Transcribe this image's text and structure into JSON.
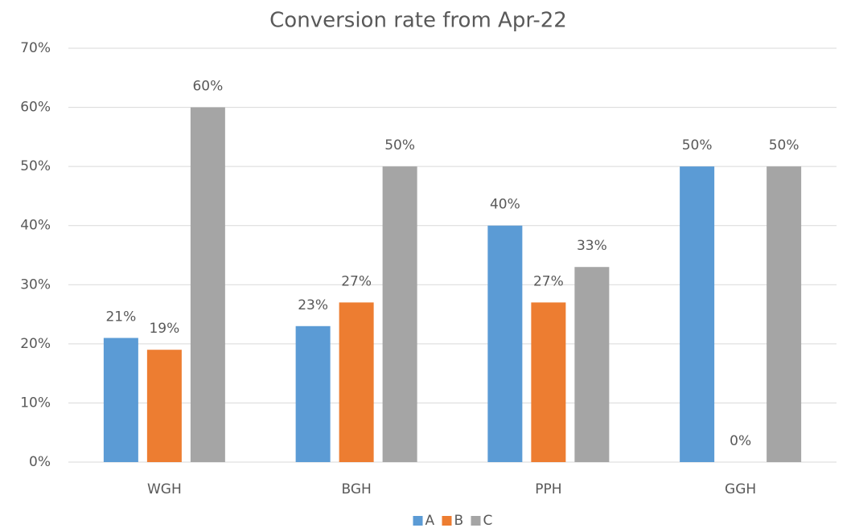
{
  "chart_data": {
    "type": "bar",
    "title": "Conversion rate from Apr-22",
    "categories": [
      "WGH",
      "BGH",
      "PPH",
      "GGH"
    ],
    "series": [
      {
        "name": "A",
        "color": "#5b9bd5",
        "values": [
          21,
          23,
          40,
          50
        ],
        "value_labels": [
          "21%",
          "23%",
          "40%",
          "50%"
        ]
      },
      {
        "name": "B",
        "color": "#ed7d31",
        "values": [
          19,
          27,
          27,
          0
        ],
        "value_labels": [
          "19%",
          "27%",
          "27%",
          "0%"
        ]
      },
      {
        "name": "C",
        "color": "#a5a5a5",
        "values": [
          60,
          50,
          33,
          50
        ],
        "value_labels": [
          "60%",
          "50%",
          "33%",
          "50%"
        ]
      }
    ],
    "ylim": [
      0,
      70
    ],
    "yticks": [
      {
        "value": 0,
        "label": "0%"
      },
      {
        "value": 10,
        "label": "10%"
      },
      {
        "value": 20,
        "label": "20%"
      },
      {
        "value": 30,
        "label": "30%"
      },
      {
        "value": 40,
        "label": "40%"
      },
      {
        "value": 50,
        "label": "50%"
      },
      {
        "value": 60,
        "label": "60%"
      },
      {
        "value": 70,
        "label": "70%"
      }
    ],
    "grid": true,
    "legend": "bottom"
  }
}
